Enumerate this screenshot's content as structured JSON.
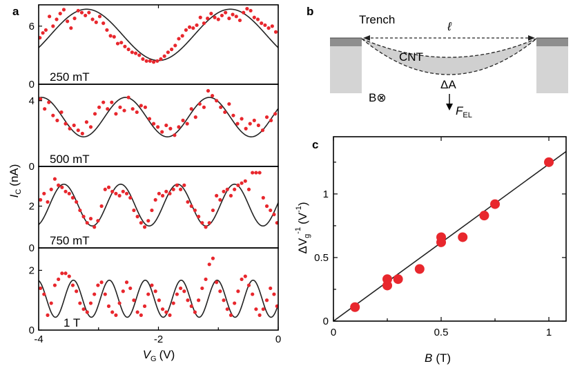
{
  "panel_a": {
    "letter": "a",
    "xlabel_main": "V",
    "xlabel_sub": "G",
    "xlabel_unit": "(V)",
    "ylabel_main": "I",
    "ylabel_sub": "C",
    "ylabel_unit": "(nA)",
    "x_ticks": [
      "-4",
      "-2",
      "0"
    ]
  },
  "panel_b": {
    "letter": "b",
    "trench": "Trench",
    "length": "ℓ",
    "cnt": "CNT",
    "delta_a": "ΔA",
    "field": "B⊗",
    "force_main": "F",
    "force_sub": "EL"
  },
  "panel_c": {
    "letter": "c",
    "xlabel_main": "B",
    "xlabel_unit": "(T)",
    "ylabel_prefix": "ΔV",
    "ylabel_sub": "g",
    "ylabel_sup": "-1",
    "ylabel_unit": "(V",
    "ylabel_unit_sup": "-1",
    "ylabel_close": ")",
    "x_ticks": [
      "0",
      "0.5",
      "1"
    ],
    "y_ticks": [
      "0",
      "0.5",
      "1"
    ]
  },
  "chart_data": [
    {
      "type": "scatter",
      "label": "250 mT",
      "xlim": [
        -4,
        0
      ],
      "ylim": [
        0,
        8.2
      ],
      "yticks": [
        {
          "v": 0,
          "t": "0"
        },
        {
          "v": 6,
          "t": "6"
        }
      ],
      "fit": {
        "offset": 5.1,
        "amplitude": 2.65,
        "period": 2.4,
        "phase": -3.2
      },
      "x": [
        -3.98,
        -3.93,
        -3.88,
        -3.82,
        -3.76,
        -3.7,
        -3.64,
        -3.58,
        -3.52,
        -3.46,
        -3.4,
        -3.34,
        -3.28,
        -3.22,
        -3.16,
        -3.1,
        -3.04,
        -2.98,
        -2.92,
        -2.86,
        -2.8,
        -2.74,
        -2.68,
        -2.62,
        -2.56,
        -2.5,
        -2.44,
        -2.38,
        -2.32,
        -2.26,
        -2.2,
        -2.14,
        -2.08,
        -2.02,
        -1.96,
        -1.9,
        -1.84,
        -1.78,
        -1.72,
        -1.66,
        -1.6,
        -1.54,
        -1.48,
        -1.42,
        -1.36,
        -1.3,
        -1.24,
        -1.18,
        -1.12,
        -1.06,
        -1.0,
        -0.94,
        -0.88,
        -0.82,
        -0.76,
        -0.7,
        -0.64,
        -0.58,
        -0.52,
        -0.46,
        -0.4,
        -0.34,
        -0.28,
        -0.22,
        -0.16,
        -0.1,
        -0.04
      ],
      "y": [
        4.8,
        5.3,
        5.6,
        7.0,
        6.0,
        6.7,
        7.3,
        7.7,
        6.5,
        5.8,
        6.8,
        7.6,
        7.4,
        7.1,
        7.4,
        6.7,
        6.4,
        7.0,
        6.3,
        5.6,
        5.0,
        4.9,
        4.2,
        4.3,
        3.9,
        3.6,
        3.3,
        3.2,
        3.0,
        2.6,
        2.4,
        2.4,
        2.3,
        2.4,
        2.6,
        2.9,
        3.3,
        3.6,
        4.0,
        4.7,
        5.0,
        5.6,
        5.9,
        5.8,
        6.1,
        6.9,
        6.3,
        6.8,
        7.3,
        6.9,
        6.7,
        7.1,
        7.4,
        6.8,
        7.2,
        7.0,
        6.6,
        7.4,
        7.8,
        7.6,
        6.9,
        6.7,
        6.3,
        6.1,
        5.8,
        6.0,
        5.4
      ]
    },
    {
      "type": "scatter",
      "label": "500 mT",
      "xlim": [
        -4,
        0
      ],
      "ylim": [
        0,
        5.0
      ],
      "yticks": [
        {
          "v": 0,
          "t": "0"
        },
        {
          "v": 4,
          "t": "4"
        }
      ],
      "fit": {
        "offset": 3.0,
        "amplitude": 1.2,
        "period": 1.4,
        "phase": -3.95
      },
      "x": [
        -3.97,
        -3.9,
        -3.83,
        -3.76,
        -3.69,
        -3.62,
        -3.55,
        -3.48,
        -3.41,
        -3.34,
        -3.27,
        -3.2,
        -3.13,
        -3.06,
        -2.99,
        -2.92,
        -2.85,
        -2.78,
        -2.71,
        -2.64,
        -2.57,
        -2.5,
        -2.43,
        -2.36,
        -2.29,
        -2.22,
        -2.15,
        -2.08,
        -2.01,
        -1.94,
        -1.87,
        -1.8,
        -1.73,
        -1.66,
        -1.59,
        -1.52,
        -1.45,
        -1.38,
        -1.31,
        -1.24,
        -1.17,
        -1.1,
        -1.03,
        -0.96,
        -0.89,
        -0.82,
        -0.75,
        -0.68,
        -0.61,
        -0.54,
        -0.47,
        -0.4,
        -0.33,
        -0.26,
        -0.19,
        -0.12,
        -0.05
      ],
      "y": [
        4.1,
        3.5,
        3.9,
        3.1,
        2.8,
        3.3,
        2.6,
        2.3,
        2.5,
        2.2,
        2.0,
        2.7,
        2.4,
        3.2,
        3.6,
        3.9,
        3.5,
        3.9,
        3.2,
        3.6,
        3.4,
        4.2,
        3.5,
        3.3,
        3.7,
        3.6,
        2.9,
        2.6,
        2.4,
        2.1,
        2.5,
        2.3,
        1.9,
        2.4,
        2.8,
        2.6,
        3.5,
        3.0,
        3.8,
        3.6,
        4.6,
        4.3,
        4.0,
        3.6,
        3.3,
        3.8,
        3.1,
        2.6,
        2.9,
        2.3,
        2.6,
        2.8,
        2.5,
        2.2,
        3.0,
        2.8,
        3.2
      ]
    },
    {
      "type": "scatter",
      "label": "750 mT",
      "xlim": [
        -4,
        0
      ],
      "ylim": [
        0,
        3.9
      ],
      "yticks": [
        {
          "v": 0,
          "t": "0"
        },
        {
          "v": 2,
          "t": "2"
        }
      ],
      "fit": {
        "offset": 2.05,
        "amplitude": 1.0,
        "period": 0.95,
        "phase": -3.58
      },
      "x": [
        -3.97,
        -3.91,
        -3.85,
        -3.79,
        -3.73,
        -3.67,
        -3.61,
        -3.55,
        -3.49,
        -3.43,
        -3.37,
        -3.31,
        -3.25,
        -3.19,
        -3.13,
        -3.07,
        -3.01,
        -2.95,
        -2.89,
        -2.83,
        -2.77,
        -2.71,
        -2.65,
        -2.59,
        -2.53,
        -2.47,
        -2.41,
        -2.35,
        -2.29,
        -2.23,
        -2.17,
        -2.11,
        -2.05,
        -1.99,
        -1.93,
        -1.87,
        -1.81,
        -1.75,
        -1.69,
        -1.63,
        -1.57,
        -1.51,
        -1.45,
        -1.39,
        -1.33,
        -1.27,
        -1.21,
        -1.15,
        -1.09,
        -1.03,
        -0.97,
        -0.91,
        -0.85,
        -0.79,
        -0.73,
        -0.67,
        -0.61,
        -0.55,
        -0.49,
        -0.43,
        -0.37,
        -0.31,
        -0.25,
        -0.19,
        -0.13,
        -0.07,
        -0.02
      ],
      "y": [
        2.3,
        2.6,
        2.2,
        2.8,
        3.3,
        3.0,
        2.9,
        2.7,
        2.6,
        2.4,
        2.2,
        1.8,
        1.5,
        1.2,
        1.4,
        1.0,
        1.3,
        2.0,
        2.8,
        2.9,
        2.7,
        2.6,
        2.5,
        2.7,
        2.6,
        2.4,
        1.8,
        1.5,
        1.2,
        1.0,
        1.3,
        1.8,
        2.3,
        2.6,
        2.5,
        2.7,
        2.6,
        2.8,
        3.0,
        2.8,
        3.0,
        2.2,
        2.0,
        1.8,
        1.5,
        1.2,
        1.0,
        1.2,
        1.8,
        2.5,
        2.3,
        2.7,
        2.8,
        2.5,
        2.8,
        3.0,
        3.1,
        3.2,
        2.8,
        3.6,
        3.6,
        3.6,
        2.4,
        2.0,
        1.8,
        1.6,
        1.2
      ]
    },
    {
      "type": "scatter",
      "label": "1 T",
      "xlim": [
        -4,
        0
      ],
      "ylim": [
        0,
        2.75
      ],
      "yticks": [
        {
          "v": 0,
          "t": "0"
        },
        {
          "v": 2,
          "t": "2"
        }
      ],
      "fit": {
        "offset": 1.05,
        "amplitude": 0.62,
        "period": 0.6,
        "phase": -3.42
      },
      "x": [
        -3.97,
        -3.91,
        -3.85,
        -3.79,
        -3.73,
        -3.67,
        -3.61,
        -3.55,
        -3.49,
        -3.43,
        -3.37,
        -3.31,
        -3.25,
        -3.19,
        -3.13,
        -3.07,
        -3.01,
        -2.95,
        -2.89,
        -2.83,
        -2.77,
        -2.71,
        -2.65,
        -2.59,
        -2.53,
        -2.47,
        -2.41,
        -2.35,
        -2.29,
        -2.23,
        -2.17,
        -2.11,
        -2.05,
        -1.99,
        -1.93,
        -1.87,
        -1.81,
        -1.75,
        -1.69,
        -1.63,
        -1.57,
        -1.51,
        -1.45,
        -1.39,
        -1.33,
        -1.27,
        -1.21,
        -1.15,
        -1.09,
        -1.03,
        -0.97,
        -0.91,
        -0.85,
        -0.79,
        -0.73,
        -0.67,
        -0.61,
        -0.55,
        -0.49,
        -0.43,
        -0.37,
        -0.31,
        -0.25,
        -0.19,
        -0.13,
        -0.07,
        -0.02
      ],
      "y": [
        1.4,
        1.2,
        0.5,
        0.9,
        1.5,
        1.7,
        1.9,
        1.9,
        1.8,
        1.5,
        1.3,
        0.9,
        0.7,
        0.6,
        0.9,
        1.2,
        1.5,
        1.6,
        1.2,
        0.8,
        0.6,
        0.5,
        0.9,
        1.3,
        1.6,
        1.4,
        1.0,
        0.6,
        0.5,
        0.8,
        1.2,
        1.5,
        1.3,
        1.0,
        0.7,
        0.6,
        0.5,
        0.9,
        1.2,
        1.4,
        1.3,
        1.0,
        0.8,
        0.6,
        1.0,
        1.4,
        1.7,
        2.2,
        2.4,
        1.6,
        1.3,
        1.0,
        0.7,
        0.5,
        0.9,
        1.3,
        1.7,
        1.8,
        1.5,
        1.2,
        0.7,
        0.5,
        0.7,
        1.0,
        1.4,
        1.2,
        0.8
      ]
    },
    {
      "type": "scatter",
      "xlim": [
        0,
        1.08
      ],
      "ylim": [
        0,
        1.45
      ],
      "x": [
        0.1,
        0.25,
        0.25,
        0.3,
        0.4,
        0.5,
        0.5,
        0.6,
        0.7,
        0.75,
        1.0
      ],
      "y": [
        0.11,
        0.28,
        0.33,
        0.33,
        0.41,
        0.62,
        0.66,
        0.66,
        0.83,
        0.92,
        1.25
      ],
      "fit_line": {
        "slope": 1.235,
        "intercept": 0.0
      }
    }
  ]
}
